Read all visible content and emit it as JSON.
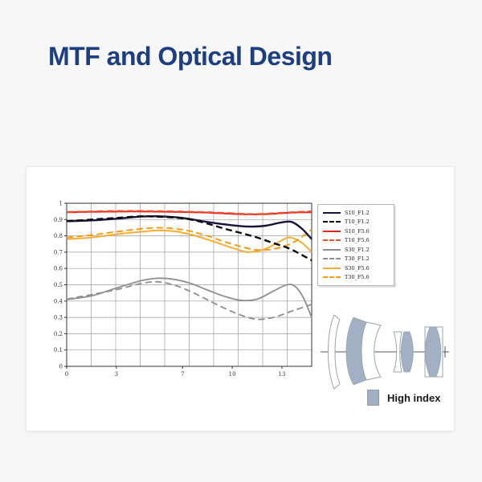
{
  "page": {
    "title": "MTF and Optical Design",
    "title_color": "#1d3e80",
    "background": "#f7f7f7",
    "panel_background": "#ffffff"
  },
  "chart_data": {
    "type": "line",
    "title": "",
    "xlabel": "",
    "ylabel": "",
    "xlim": [
      0,
      14.8
    ],
    "ylim": [
      0,
      1
    ],
    "grid": true,
    "grid_divisions_x": 10,
    "grid_divisions_y": 10,
    "legend_position": "right",
    "x_ticks": [
      {
        "value": 0,
        "label": "0"
      },
      {
        "value": 3,
        "label": "3"
      },
      {
        "value": 7,
        "label": "7"
      },
      {
        "value": 10,
        "label": "10"
      },
      {
        "value": 13,
        "label": "13"
      }
    ],
    "y_ticks": [
      {
        "value": 0,
        "label": "0"
      },
      {
        "value": 0.1,
        "label": "0.1"
      },
      {
        "value": 0.2,
        "label": "0.2"
      },
      {
        "value": 0.3,
        "label": "0.3"
      },
      {
        "value": 0.4,
        "label": "0.4"
      },
      {
        "value": 0.5,
        "label": "0.5"
      },
      {
        "value": 0.6,
        "label": "0.6"
      },
      {
        "value": 0.7,
        "label": "0.7"
      },
      {
        "value": 0.8,
        "label": "0.8"
      },
      {
        "value": 0.9,
        "label": "0.9"
      },
      {
        "value": 1,
        "label": "1"
      }
    ],
    "series": [
      {
        "name": "S10_F1.2",
        "color": "#15153e",
        "dash": "solid",
        "width": 2.4,
        "points": [
          [
            0,
            0.89
          ],
          [
            1.5,
            0.895
          ],
          [
            3,
            0.905
          ],
          [
            4.5,
            0.918
          ],
          [
            5.5,
            0.92
          ],
          [
            7,
            0.91
          ],
          [
            8.5,
            0.885
          ],
          [
            10,
            0.865
          ],
          [
            11,
            0.857
          ],
          [
            12,
            0.862
          ],
          [
            13,
            0.883
          ],
          [
            13.6,
            0.885
          ],
          [
            14.2,
            0.845
          ],
          [
            14.8,
            0.78
          ]
        ]
      },
      {
        "name": "T10_F1.2",
        "color": "#0d0d0d",
        "dash": "dashed",
        "width": 2.4,
        "points": [
          [
            0,
            0.89
          ],
          [
            1.5,
            0.9
          ],
          [
            3,
            0.91
          ],
          [
            4.5,
            0.92
          ],
          [
            5.5,
            0.917
          ],
          [
            6.5,
            0.912
          ],
          [
            7.5,
            0.9
          ],
          [
            8.5,
            0.875
          ],
          [
            9.5,
            0.845
          ],
          [
            10.5,
            0.818
          ],
          [
            11.5,
            0.79
          ],
          [
            12.5,
            0.755
          ],
          [
            13.5,
            0.72
          ],
          [
            14.8,
            0.65
          ]
        ]
      },
      {
        "name": "S10_F5.6",
        "color": "#e8231a",
        "dash": "solid",
        "width": 2,
        "points": [
          [
            0,
            0.945
          ],
          [
            2,
            0.948
          ],
          [
            4,
            0.95
          ],
          [
            6,
            0.948
          ],
          [
            8,
            0.944
          ],
          [
            9,
            0.94
          ],
          [
            10,
            0.935
          ],
          [
            11,
            0.932
          ],
          [
            12,
            0.933
          ],
          [
            13,
            0.939
          ],
          [
            14,
            0.944
          ],
          [
            14.8,
            0.945
          ]
        ]
      },
      {
        "name": "T10_F5.6",
        "color": "#f0512a",
        "dash": "dashed",
        "width": 2,
        "points": [
          [
            0,
            0.947
          ],
          [
            2,
            0.951
          ],
          [
            4,
            0.953
          ],
          [
            6,
            0.951
          ],
          [
            8,
            0.947
          ],
          [
            10,
            0.939
          ],
          [
            11,
            0.934
          ],
          [
            12,
            0.936
          ],
          [
            13,
            0.942
          ],
          [
            14.8,
            0.951
          ]
        ]
      },
      {
        "name": "S30_F1.2",
        "color": "#8f8f8f",
        "dash": "solid",
        "width": 1.8,
        "points": [
          [
            0,
            0.41
          ],
          [
            1.5,
            0.432
          ],
          [
            3,
            0.48
          ],
          [
            4.5,
            0.525
          ],
          [
            5.5,
            0.54
          ],
          [
            6.5,
            0.533
          ],
          [
            7.5,
            0.508
          ],
          [
            8.5,
            0.468
          ],
          [
            9.5,
            0.43
          ],
          [
            10.5,
            0.405
          ],
          [
            11.5,
            0.412
          ],
          [
            12.5,
            0.462
          ],
          [
            13.3,
            0.5
          ],
          [
            13.8,
            0.49
          ],
          [
            14.3,
            0.42
          ],
          [
            14.8,
            0.3
          ]
        ]
      },
      {
        "name": "T30_F1.2",
        "color": "#8f8f8f",
        "dash": "dashed",
        "width": 1.8,
        "points": [
          [
            0,
            0.412
          ],
          [
            1.5,
            0.44
          ],
          [
            3,
            0.47
          ],
          [
            4.5,
            0.508
          ],
          [
            5.5,
            0.518
          ],
          [
            6.5,
            0.498
          ],
          [
            7.5,
            0.458
          ],
          [
            8.5,
            0.408
          ],
          [
            9.5,
            0.358
          ],
          [
            10.5,
            0.315
          ],
          [
            11.5,
            0.288
          ],
          [
            12.5,
            0.3
          ],
          [
            13.5,
            0.335
          ],
          [
            14.8,
            0.38
          ]
        ]
      },
      {
        "name": "S30_F5.6",
        "color": "#f7ad33",
        "dash": "solid",
        "width": 2,
        "points": [
          [
            0,
            0.78
          ],
          [
            1.5,
            0.79
          ],
          [
            3,
            0.81
          ],
          [
            4.5,
            0.825
          ],
          [
            5.5,
            0.833
          ],
          [
            6.5,
            0.828
          ],
          [
            7.5,
            0.808
          ],
          [
            8.5,
            0.778
          ],
          [
            9.5,
            0.743
          ],
          [
            10.5,
            0.71
          ],
          [
            11,
            0.7
          ],
          [
            12,
            0.72
          ],
          [
            13,
            0.773
          ],
          [
            13.5,
            0.79
          ],
          [
            14.2,
            0.758
          ],
          [
            14.8,
            0.7
          ]
        ]
      },
      {
        "name": "T30_F5.6",
        "color": "#f49d15",
        "dash": "dashed",
        "width": 2,
        "points": [
          [
            0,
            0.79
          ],
          [
            1.5,
            0.805
          ],
          [
            3,
            0.825
          ],
          [
            4.5,
            0.843
          ],
          [
            5.5,
            0.85
          ],
          [
            6.5,
            0.844
          ],
          [
            7.5,
            0.828
          ],
          [
            8.5,
            0.8
          ],
          [
            9.5,
            0.765
          ],
          [
            10.5,
            0.735
          ],
          [
            11.5,
            0.714
          ],
          [
            12.5,
            0.72
          ],
          [
            13.5,
            0.75
          ],
          [
            14.3,
            0.8
          ],
          [
            14.8,
            0.84
          ]
        ]
      }
    ]
  },
  "lens_diagram": {
    "legend_label": "High index",
    "fill_color": "#a2b0c4",
    "outline_color": "#9aa4b2",
    "axis_color": "#555555"
  }
}
